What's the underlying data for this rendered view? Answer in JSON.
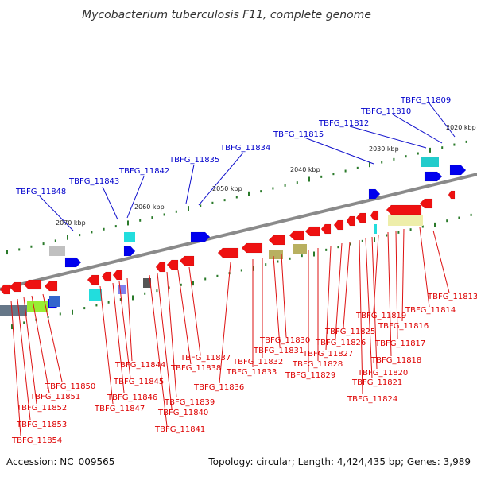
{
  "title": "Mycobacterium tuberculosis F11, complete genome",
  "footer": {
    "accession": "Accession: NC_009565",
    "stats": "Topology: circular; Length: 4,424,435 bp; Genes: 3,989"
  },
  "colors": {
    "backbone": "#808080",
    "forward_label": "#0000cc",
    "reverse_label": "#dd0000",
    "tick": "#2a7a2a"
  },
  "scale_labels": [
    "2020 kbp",
    "2030 kbp",
    "2040 kbp",
    "2050 kbp",
    "2060 kbp",
    "2070 kbp"
  ],
  "forward_genes": [
    "TBFG_11809",
    "TBFG_11810",
    "TBFG_11812",
    "TBFG_11815",
    "TBFG_11834",
    "TBFG_11835",
    "TBFG_11842",
    "TBFG_11843",
    "TBFG_11848"
  ],
  "reverse_genes": [
    "TBFG_11813",
    "TBFG_11814",
    "TBFG_11816",
    "TBFG_11817",
    "TBFG_11818",
    "TBFG_11819",
    "TBFG_11820",
    "TBFG_11821",
    "TBFG_11824",
    "TBFG_11825",
    "TBFG_11826",
    "TBFG_11827",
    "TBFG_11828",
    "TBFG_11829",
    "TBFG_11830",
    "TBFG_11831",
    "TBFG_11832",
    "TBFG_11833",
    "TBFG_11836",
    "TBFG_11837",
    "TBFG_11838",
    "TBFG_11839",
    "TBFG_11840",
    "TBFG_11841",
    "TBFG_11844",
    "TBFG_11845",
    "TBFG_11846",
    "TBFG_11847",
    "TBFG_11850",
    "TBFG_11851",
    "TBFG_11852",
    "TBFG_11853",
    "TBFG_11854"
  ]
}
